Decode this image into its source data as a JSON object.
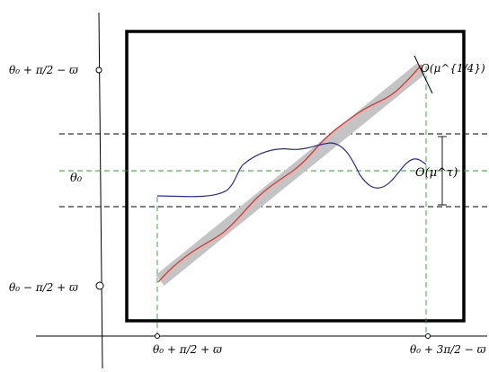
{
  "labels": {
    "y_top_label": "θ₀ + π/2 − ϖ",
    "y_mid_label": "θ₀",
    "y_bot_label": "θ₀ − π/2 + ϖ",
    "x_left_label": "θ₀ + π/2 + ϖ",
    "x_right_label": "θ₀ + 3π/2 − ϖ",
    "band_width_label": "O(μ^{1/4})",
    "gap_label": "O(μ^τ)"
  },
  "colors": {
    "frame": "#000000",
    "axes": "#000000",
    "dashed_black": "#000000",
    "dashed_green": "#22aa22",
    "red_curve": "#e8322a",
    "blue_curve": "#2b2b9a",
    "gray_band": "#c4c4c4"
  }
}
